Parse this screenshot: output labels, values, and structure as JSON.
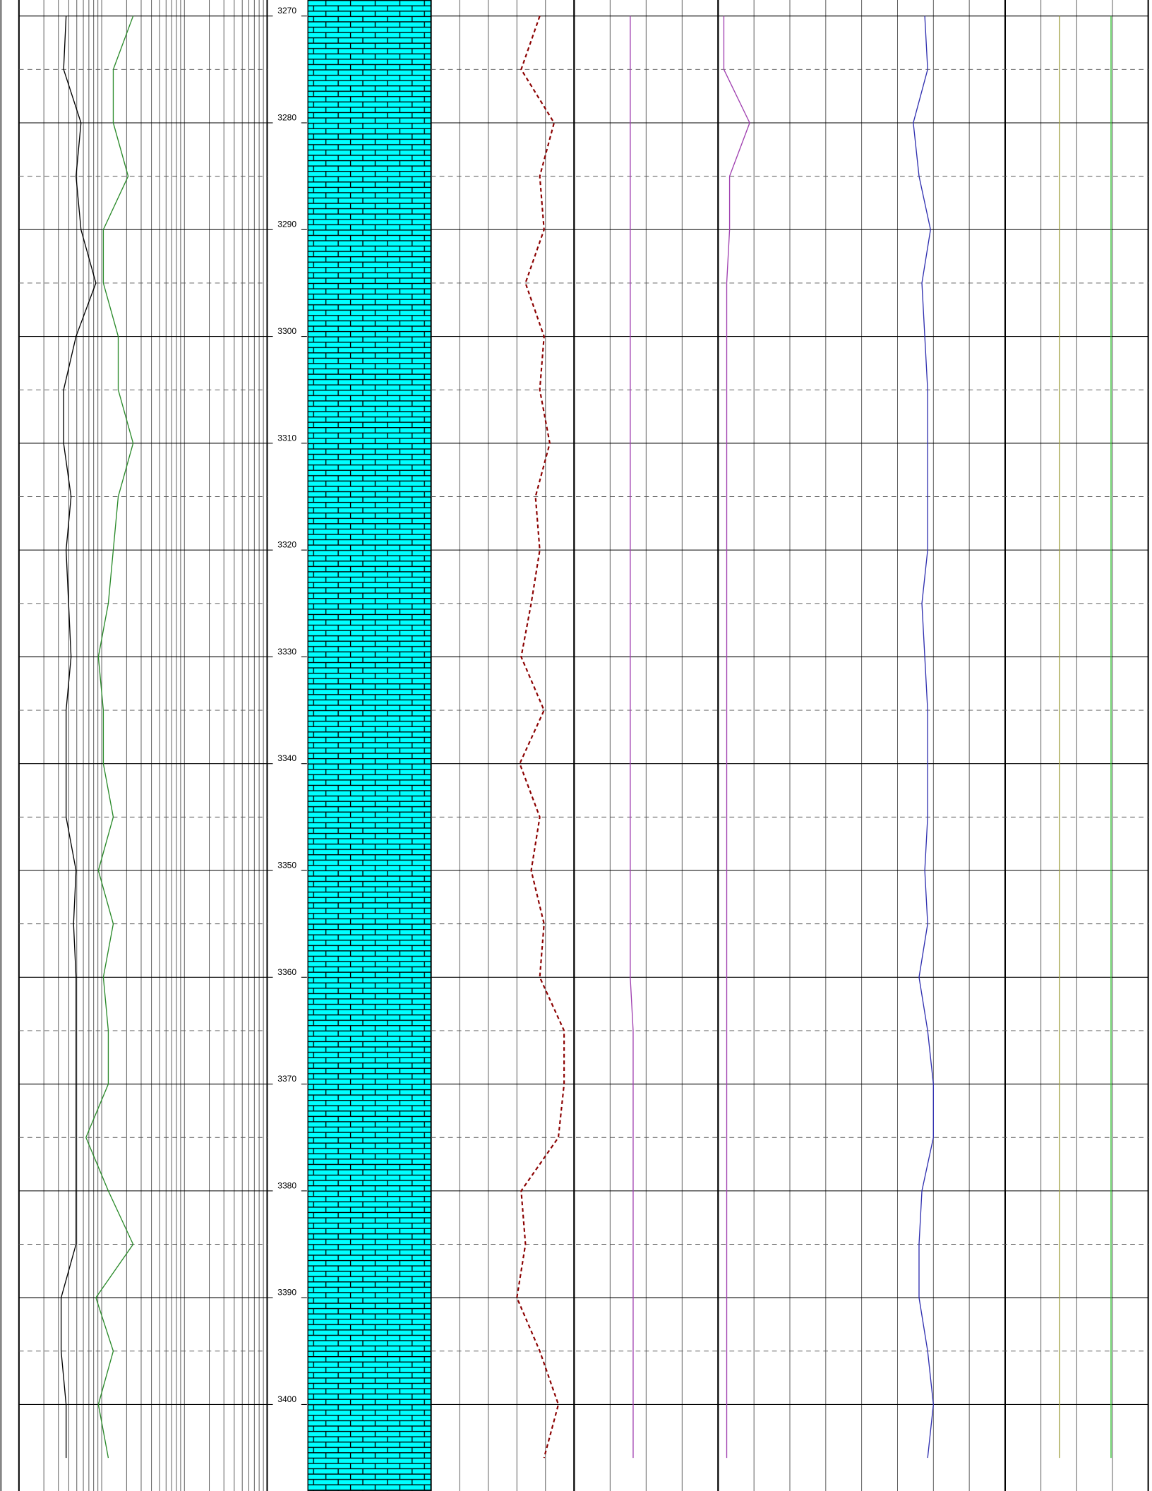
{
  "chart_data": {
    "type": "well-log",
    "ylim": [
      3268.5,
      3408.1
    ],
    "yticks": [
      3270,
      3280,
      3290,
      3300,
      3310,
      3320,
      3330,
      3340,
      3350,
      3360,
      3370,
      3380,
      3390,
      3400
    ],
    "depths": [
      3270,
      3275,
      3280,
      3285,
      3290,
      3295,
      3300,
      3305,
      3310,
      3315,
      3320,
      3325,
      3330,
      3335,
      3340,
      3345,
      3350,
      3355,
      3360,
      3365,
      3370,
      3375,
      3380,
      3385,
      3390,
      3395,
      3400,
      3405
    ],
    "tracks": [
      {
        "xlim": [
          0,
          100
        ],
        "series": [
          {
            "color": "#000000",
            "values": [
              19,
              18,
              25,
              23,
              25,
              31,
              23,
              18,
              18,
              21,
              19,
              20,
              21,
              19,
              19,
              19,
              23,
              22,
              23,
              23,
              23,
              23,
              23,
              23,
              17,
              17,
              19,
              19
            ]
          },
          {
            "color": "#2a8a2a",
            "values": [
              46,
              38,
              38,
              44,
              34,
              34,
              40,
              40,
              46,
              40,
              38,
              36,
              32,
              34,
              34,
              38,
              32,
              38,
              34,
              36,
              36,
              27,
              36,
              46,
              31,
              38,
              32,
              36
            ]
          }
        ]
      },
      {
        "xlim": [
          0,
          100
        ],
        "series": [
          {
            "color": "#8b0000",
            "dashed": true,
            "values": [
              76,
              63,
              86,
              76,
              79,
              66,
              79,
              76,
              83,
              73,
              76,
              70,
              63,
              79,
              62,
              76,
              70,
              79,
              76,
              93,
              93,
              89,
              63,
              66,
              60,
              76,
              89,
              79
            ]
          }
        ]
      },
      {
        "xlim": [
          0,
          100
        ],
        "series": [
          {
            "color": "#a040b0",
            "values": [
              39,
              39,
              39,
              39,
              39,
              39,
              39,
              39,
              39,
              39,
              39,
              39,
              39,
              39,
              39,
              39,
              39,
              39,
              39,
              41,
              41,
              41,
              41,
              41,
              41,
              41,
              41,
              41
            ]
          }
        ]
      },
      {
        "xlim": [
          0,
          100
        ],
        "series": [
          {
            "color": "#a040b0",
            "values": [
              2,
              2,
              11,
              4,
              4,
              3,
              3,
              3,
              3,
              3,
              3,
              3,
              3,
              3,
              3,
              3,
              3,
              3,
              3,
              3,
              3,
              3,
              3,
              3,
              3,
              3,
              3,
              3
            ]
          },
          {
            "color": "#3030b0",
            "values": [
              72,
              73,
              68,
              70,
              74,
              71,
              72,
              73,
              73,
              73,
              73,
              71,
              72,
              73,
              73,
              73,
              72,
              73,
              70,
              73,
              75,
              75,
              71,
              70,
              70,
              73,
              75,
              73
            ]
          }
        ]
      },
      {
        "xlim": [
          0,
          100
        ],
        "series": [
          {
            "color": "#a0a040",
            "values": [
              38,
              38,
              38,
              38,
              38,
              38,
              38,
              38,
              38,
              38,
              38,
              38,
              38,
              38,
              38,
              38,
              38,
              38,
              38,
              38,
              38,
              38,
              38,
              38,
              38,
              38,
              38,
              38
            ]
          },
          {
            "color": "#30c030",
            "values": [
              74,
              74,
              74,
              74,
              74,
              74,
              74,
              74,
              74,
              74,
              74,
              74,
              74,
              74,
              74,
              74,
              74,
              74,
              74,
              74,
              74,
              74,
              74,
              74,
              74,
              74,
              74,
              74
            ]
          }
        ]
      }
    ]
  }
}
